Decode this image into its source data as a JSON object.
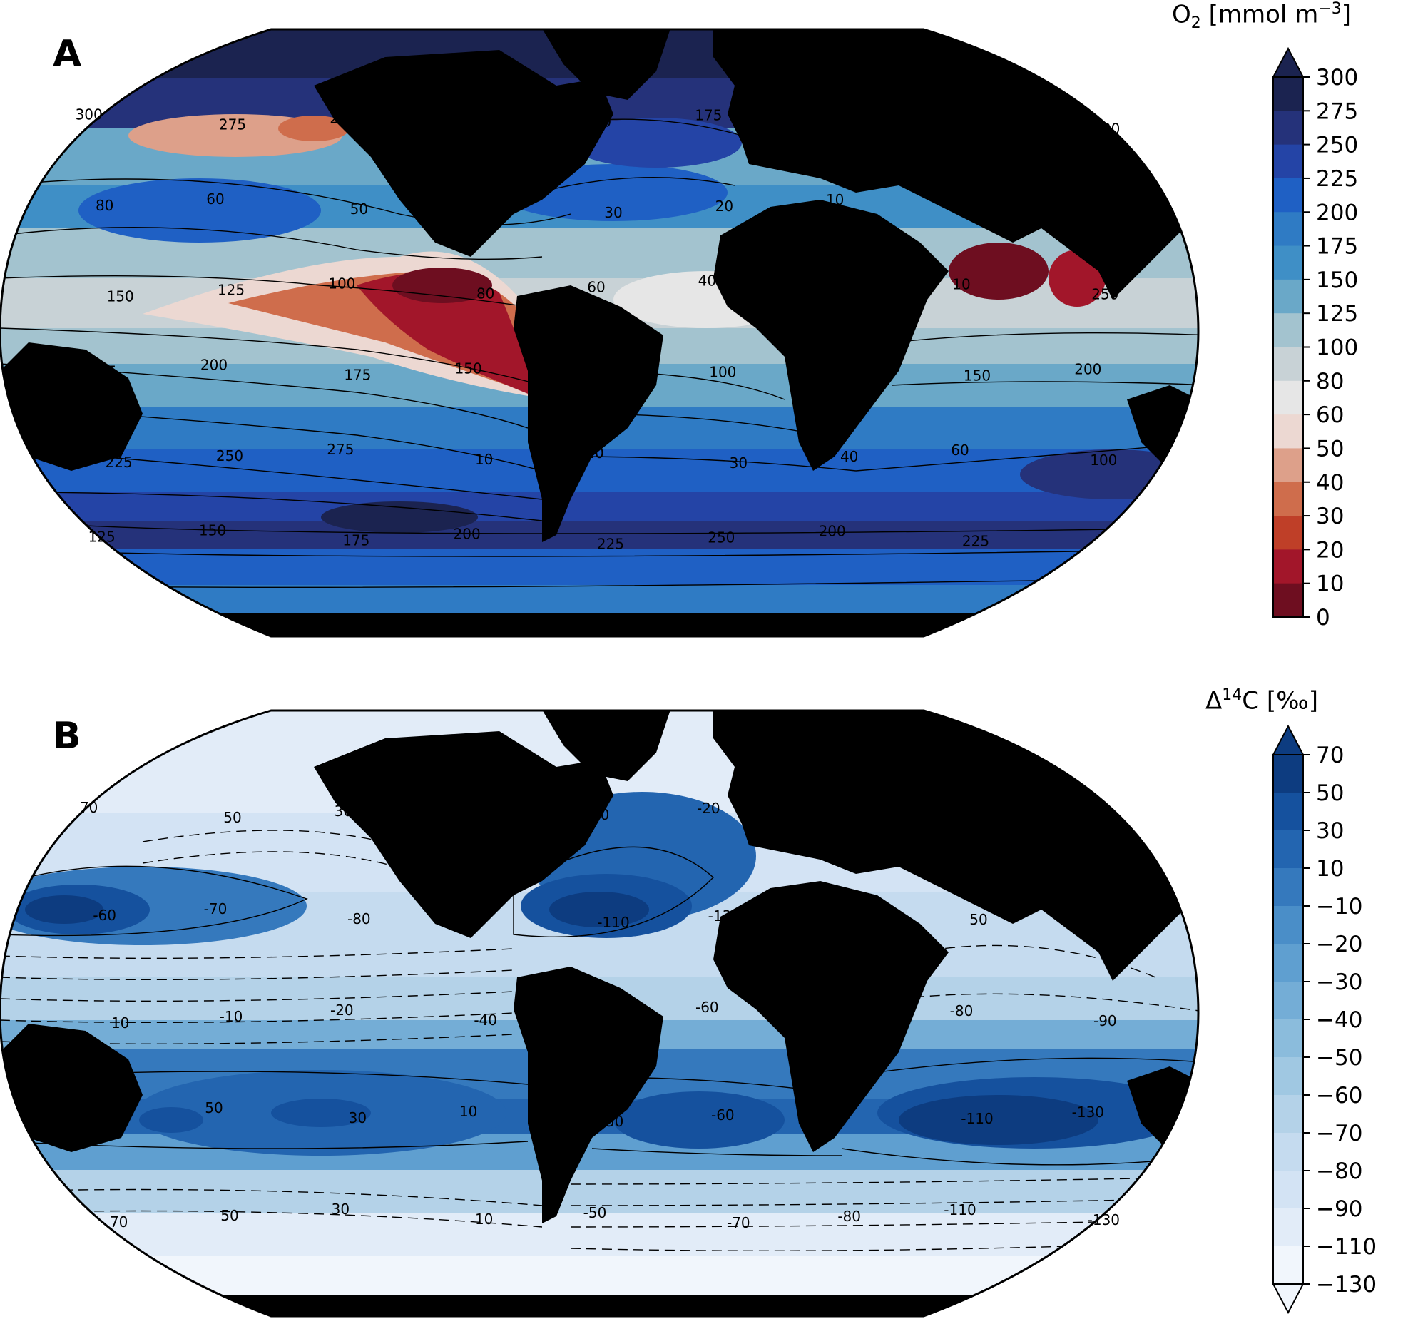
{
  "panels": [
    {
      "label": "A",
      "variable": "O2",
      "colorbar": {
        "title_main": "O",
        "title_sub": "2",
        "title_rest": " [mmol m",
        "title_sup": "−3",
        "title_end": "]",
        "ticks": [
          "300",
          "275",
          "250",
          "225",
          "200",
          "175",
          "150",
          "125",
          "100",
          "80",
          "60",
          "50",
          "40",
          "30",
          "20",
          "10",
          "0"
        ],
        "colors": [
          "#1b2350",
          "#25327a",
          "#2444a6",
          "#1f60c4",
          "#2f7bc4",
          "#3f8fc6",
          "#6aa8c8",
          "#a3c3cf",
          "#c8d2d6",
          "#e6e6e6",
          "#ecd8d2",
          "#dda08a",
          "#cf6d4c",
          "#bf3f28",
          "#a2162a",
          "#6e0e20"
        ],
        "extend": "max"
      },
      "contour_labels": [
        {
          "t": "300"
        },
        {
          "t": "275"
        },
        {
          "t": "250"
        },
        {
          "t": "225"
        },
        {
          "t": "200"
        },
        {
          "t": "175"
        },
        {
          "t": "150"
        },
        {
          "t": "125"
        },
        {
          "t": "100"
        },
        {
          "t": "80"
        },
        {
          "t": "60"
        },
        {
          "t": "50"
        },
        {
          "t": "40"
        },
        {
          "t": "30"
        },
        {
          "t": "20"
        },
        {
          "t": "10"
        },
        {
          "t": "200"
        },
        {
          "t": "175"
        },
        {
          "t": "150"
        },
        {
          "t": "125"
        },
        {
          "t": "100"
        },
        {
          "t": "80"
        },
        {
          "t": "60"
        },
        {
          "t": "40"
        },
        {
          "t": "20"
        },
        {
          "t": "10"
        },
        {
          "t": "250"
        },
        {
          "t": "225"
        },
        {
          "t": "200"
        },
        {
          "t": "175"
        },
        {
          "t": "150"
        },
        {
          "t": "125"
        },
        {
          "t": "100"
        },
        {
          "t": "80"
        },
        {
          "t": "150"
        },
        {
          "t": "200"
        },
        {
          "t": "225"
        },
        {
          "t": "250"
        },
        {
          "t": "275"
        },
        {
          "t": "10"
        },
        {
          "t": "20"
        },
        {
          "t": "30"
        },
        {
          "t": "40"
        },
        {
          "t": "60"
        },
        {
          "t": "100"
        },
        {
          "t": "125"
        },
        {
          "t": "150"
        },
        {
          "t": "175"
        },
        {
          "t": "200"
        },
        {
          "t": "225"
        },
        {
          "t": "250"
        },
        {
          "t": "200"
        },
        {
          "t": "225"
        }
      ]
    },
    {
      "label": "B",
      "variable": "Δ14C",
      "colorbar": {
        "title_main": "Δ",
        "title_sup": "14",
        "title_rest": "C [‰]",
        "ticks": [
          "70",
          "50",
          "30",
          "10",
          "−10",
          "−20",
          "−30",
          "−40",
          "−50",
          "−60",
          "−70",
          "−80",
          "−90",
          "−110",
          "−130"
        ],
        "colors": [
          "#0d3c80",
          "#15519e",
          "#2365b0",
          "#3579bd",
          "#4a8ec8",
          "#5f9fd0",
          "#74add6",
          "#8bbcdc",
          "#a0c8e2",
          "#b4d2e8",
          "#c5dbef",
          "#d3e3f4",
          "#e2ecf8",
          "#f1f6fc"
        ],
        "extend": "both"
      },
      "contour_labels": [
        {
          "t": "70"
        },
        {
          "t": "50"
        },
        {
          "t": "30"
        },
        {
          "t": "10"
        },
        {
          "t": "-10"
        },
        {
          "t": "-20"
        },
        {
          "t": "-30"
        },
        {
          "t": "-40"
        },
        {
          "t": "-50"
        },
        {
          "t": "-60"
        },
        {
          "t": "-70"
        },
        {
          "t": "-80"
        },
        {
          "t": "-90"
        },
        {
          "t": "-110"
        },
        {
          "t": "-130"
        },
        {
          "t": "70"
        },
        {
          "t": "50"
        },
        {
          "t": "30"
        },
        {
          "t": "10"
        },
        {
          "t": "-10"
        },
        {
          "t": "-20"
        },
        {
          "t": "-40"
        },
        {
          "t": "-50"
        },
        {
          "t": "-60"
        },
        {
          "t": "-70"
        },
        {
          "t": "-80"
        },
        {
          "t": "-90"
        },
        {
          "t": "70"
        },
        {
          "t": "50"
        },
        {
          "t": "30"
        },
        {
          "t": "10"
        },
        {
          "t": "-30"
        },
        {
          "t": "-60"
        },
        {
          "t": "-90"
        },
        {
          "t": "-110"
        },
        {
          "t": "-130"
        },
        {
          "t": "70"
        },
        {
          "t": "50"
        },
        {
          "t": "30"
        },
        {
          "t": "10"
        },
        {
          "t": "-50"
        },
        {
          "t": "-70"
        },
        {
          "t": "-80"
        },
        {
          "t": "-110"
        },
        {
          "t": "-130"
        }
      ]
    }
  ]
}
